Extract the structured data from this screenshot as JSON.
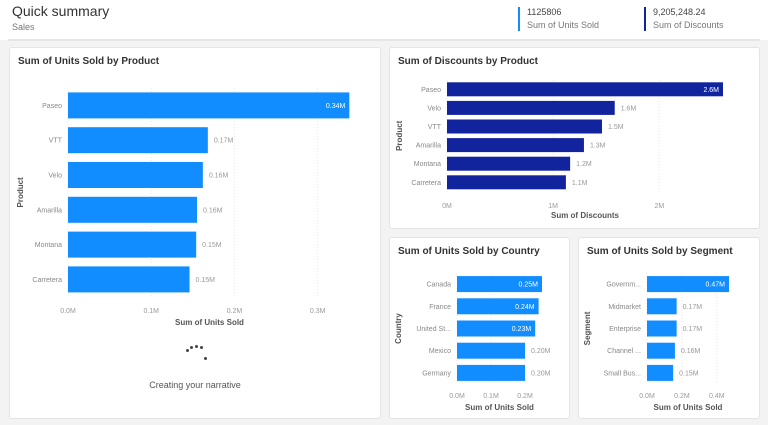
{
  "header": {
    "title": "Quick summary",
    "subtitle": "Sales"
  },
  "kpis": [
    {
      "value": "1125806",
      "label": "Sum of Units Sold",
      "color": "#118dff"
    },
    {
      "value": "9,205,248.24",
      "label": "Sum of Discounts",
      "color": "#12239e"
    }
  ],
  "narrative": {
    "status": "Creating your narrative"
  },
  "chart_data": [
    {
      "type": "bar",
      "orientation": "horizontal",
      "title": "Sum of Units Sold by Product",
      "xlabel": "Sum of Units Sold",
      "ylabel": "Product",
      "color": "#118dff",
      "categories": [
        "Paseo",
        "VTT",
        "Velo",
        "Amarilla",
        "Montana",
        "Carretera"
      ],
      "values": [
        0.338,
        0.168,
        0.162,
        0.155,
        0.154,
        0.146
      ],
      "data_labels": [
        "0.34M",
        "0.17M",
        "0.16M",
        "0.16M",
        "0.15M",
        "0.15M"
      ],
      "ticks": [
        "0.0M",
        "0.1M",
        "0.2M",
        "0.3M"
      ],
      "tick_values": [
        0,
        0.1,
        0.2,
        0.3
      ],
      "xlim": [
        0,
        0.34
      ],
      "grid": true
    },
    {
      "type": "bar",
      "orientation": "horizontal",
      "title": "Sum of Discounts by Product",
      "xlabel": "Sum of Discounts",
      "ylabel": "Product",
      "color": "#12239e",
      "categories": [
        "Paseo",
        "Velo",
        "VTT",
        "Amarilla",
        "Montana",
        "Carretera"
      ],
      "values": [
        2.6,
        1.58,
        1.46,
        1.29,
        1.16,
        1.12
      ],
      "data_labels": [
        "2.6M",
        "1.6M",
        "1.5M",
        "1.3M",
        "1.2M",
        "1.1M"
      ],
      "ticks": [
        "0M",
        "1M",
        "2M"
      ],
      "tick_values": [
        0,
        1,
        2
      ],
      "xlim": [
        0,
        2.6
      ],
      "grid": true
    },
    {
      "type": "bar",
      "orientation": "horizontal",
      "title": "Sum of Units Sold by Country",
      "xlabel": "Sum of Units Sold",
      "ylabel": "Country",
      "color": "#118dff",
      "categories": [
        "Canada",
        "France",
        "United St...",
        "Mexico",
        "Germany"
      ],
      "values": [
        0.25,
        0.24,
        0.23,
        0.2,
        0.2
      ],
      "data_labels": [
        "0.25M",
        "0.24M",
        "0.23M",
        "0.20M",
        "0.20M"
      ],
      "ticks": [
        "0.0M",
        "0.1M",
        "0.2M"
      ],
      "tick_values": [
        0,
        0.1,
        0.2
      ],
      "xlim": [
        0,
        0.25
      ],
      "grid": true
    },
    {
      "type": "bar",
      "orientation": "horizontal",
      "title": "Sum of Units Sold by Segment",
      "xlabel": "Sum of Units Sold",
      "ylabel": "Segment",
      "color": "#118dff",
      "categories": [
        "Governm...",
        "Midmarket",
        "Enterprise",
        "Channel ...",
        "Small Bus..."
      ],
      "values": [
        0.47,
        0.17,
        0.17,
        0.16,
        0.15
      ],
      "data_labels": [
        "0.47M",
        "0.17M",
        "0.17M",
        "0.16M",
        "0.15M"
      ],
      "ticks": [
        "0.0M",
        "0.2M",
        "0.4M"
      ],
      "tick_values": [
        0,
        0.2,
        0.4
      ],
      "xlim": [
        0,
        0.47
      ],
      "grid": true
    }
  ]
}
